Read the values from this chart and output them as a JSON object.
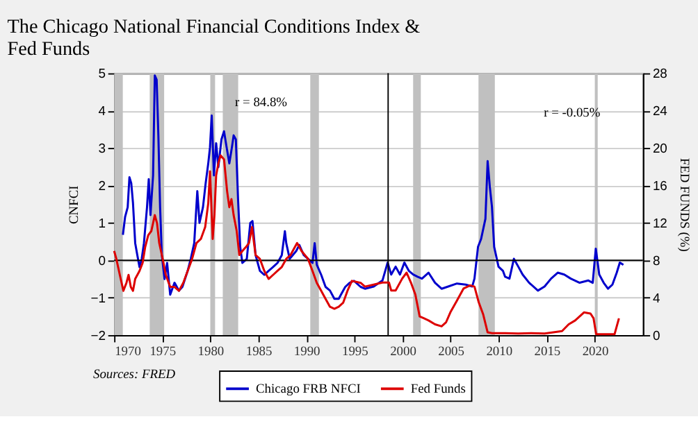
{
  "chart_data": {
    "type": "line",
    "title": "The Chicago National Financial Conditions Index & Fed Funds",
    "ylabel": "CNFCI",
    "y2label": "FED FUNDS (%)",
    "xlim": [
      1970,
      2025
    ],
    "xticks": [
      1970,
      1975,
      1980,
      1985,
      1990,
      1995,
      2000,
      2005,
      2010,
      2015,
      2020
    ],
    "ylim": [
      -2,
      5
    ],
    "yticks": [
      -2,
      -1,
      0,
      1,
      2,
      3,
      4,
      5
    ],
    "y2lim": [
      0,
      28
    ],
    "y2ticks": [
      0,
      4,
      8,
      12,
      16,
      20,
      24,
      28
    ],
    "grid": "y",
    "legend": "bottom",
    "marker": "none",
    "line_style": "solid",
    "annotations": [
      "r = 84.8%",
      "r = -0.05%",
      "Sources: FRED"
    ],
    "ref_lines": [
      {
        "axis": "x",
        "value": 1998.5,
        "color": "#000000"
      },
      {
        "axis": "y",
        "value": 0,
        "color": "#000000"
      }
    ],
    "bands": [
      {
        "axis": "x",
        "from": 1970.0,
        "to": 1970.9,
        "color": "#c0c0c0"
      },
      {
        "axis": "x",
        "from": 1973.7,
        "to": 1975.2,
        "color": "#c0c0c0"
      },
      {
        "axis": "x",
        "from": 1980.0,
        "to": 1980.5,
        "color": "#c0c0c0"
      },
      {
        "axis": "x",
        "from": 1981.3,
        "to": 1982.9,
        "color": "#c0c0c0"
      },
      {
        "axis": "x",
        "from": 1990.4,
        "to": 1991.3,
        "color": "#c0c0c0"
      },
      {
        "axis": "x",
        "from": 2001.1,
        "to": 2001.9,
        "color": "#c0c0c0"
      },
      {
        "axis": "x",
        "from": 2007.9,
        "to": 2009.6,
        "color": "#c0c0c0"
      },
      {
        "axis": "x",
        "from": 2020.0,
        "to": 2020.3,
        "color": "#c0c0c0"
      }
    ],
    "series": [
      {
        "name": "Chicago FRB NFCI",
        "color": "#0000cc",
        "x": [
          1970.91,
          1971.14,
          1971.41,
          1971.59,
          1971.78,
          1971.96,
          1972.19,
          1972.41,
          1972.64,
          1972.87,
          1973.1,
          1973.42,
          1973.6,
          1973.78,
          1974.05,
          1974.23,
          1974.42,
          1974.6,
          1974.78,
          1974.96,
          1975.24,
          1975.51,
          1975.83,
          1976.28,
          1976.74,
          1977.1,
          1977.65,
          1977.97,
          1978.33,
          1978.65,
          1978.88,
          1979.24,
          1979.52,
          1979.79,
          1979.97,
          1980.15,
          1980.38,
          1980.61,
          1980.84,
          1981.16,
          1981.43,
          1981.7,
          1981.98,
          1982.25,
          1982.43,
          1982.66,
          1982.89,
          1983.11,
          1983.34,
          1983.8,
          1984.16,
          1984.39,
          1984.71,
          1985.16,
          1985.62,
          1986.07,
          1986.53,
          1986.99,
          1987.44,
          1987.76,
          1987.9,
          1988.26,
          1988.58,
          1988.94,
          1989.26,
          1989.72,
          1990.17,
          1990.63,
          1990.86,
          1991.08,
          1991.54,
          1991.99,
          1992.45,
          1992.91,
          1993.36,
          1993.59,
          1994.04,
          1994.5,
          1994.95,
          1995.64,
          1996.09,
          1997.0,
          1997.91,
          1998.45,
          1998.82,
          1999.28,
          1999.73,
          2000.19,
          2000.65,
          2001.1,
          2001.56,
          2002.02,
          2002.7,
          2003.38,
          2004.06,
          2004.75,
          2005.66,
          2006.57,
          2007.25,
          2007.48,
          2007.85,
          2008.17,
          2008.62,
          2008.85,
          2009.08,
          2009.3,
          2009.53,
          2009.98,
          2010.44,
          2010.67,
          2011.12,
          2011.58,
          2012.04,
          2012.49,
          2013.17,
          2014.08,
          2014.77,
          2015.45,
          2016.14,
          2016.82,
          2017.5,
          2018.42,
          2019.33,
          2019.78,
          2020.1,
          2020.46,
          2020.92,
          2021.37,
          2021.83,
          2022.28,
          2022.6,
          2022.97
        ],
        "values": [
          0.68,
          1.16,
          1.42,
          2.22,
          2.06,
          1.53,
          0.46,
          0.14,
          -0.18,
          0.04,
          0.46,
          1.42,
          2.17,
          1.21,
          2.27,
          4.94,
          4.83,
          3.34,
          1.42,
          0.14,
          -0.5,
          -0.07,
          -0.92,
          -0.6,
          -0.81,
          -0.71,
          -0.28,
          0.04,
          0.46,
          1.85,
          1.0,
          1.42,
          2.06,
          2.59,
          3.02,
          3.87,
          2.27,
          3.13,
          2.49,
          3.23,
          3.45,
          3.02,
          2.59,
          3.02,
          3.34,
          3.23,
          1.63,
          0.36,
          -0.07,
          0.04,
          1.0,
          1.05,
          0.14,
          -0.28,
          -0.39,
          -0.28,
          -0.18,
          -0.07,
          0.14,
          0.78,
          0.46,
          0.04,
          0.14,
          0.25,
          0.41,
          0.14,
          0.04,
          -0.07,
          0.46,
          -0.12,
          -0.39,
          -0.71,
          -0.81,
          -1.03,
          -1.03,
          -0.92,
          -0.71,
          -0.6,
          -0.55,
          -0.71,
          -0.76,
          -0.7,
          -0.54,
          -0.06,
          -0.38,
          -0.17,
          -0.38,
          -0.06,
          -0.28,
          -0.38,
          -0.44,
          -0.49,
          -0.33,
          -0.6,
          -0.76,
          -0.7,
          -0.62,
          -0.65,
          -0.7,
          -0.49,
          0.36,
          0.57,
          1.11,
          2.65,
          1.96,
          1.43,
          0.36,
          -0.17,
          -0.28,
          -0.44,
          -0.49,
          0.04,
          -0.17,
          -0.38,
          -0.6,
          -0.81,
          -0.7,
          -0.49,
          -0.33,
          -0.38,
          -0.49,
          -0.6,
          -0.54,
          -0.6,
          0.31,
          -0.38,
          -0.6,
          -0.76,
          -0.65,
          -0.33,
          -0.06,
          -0.12
        ]
      },
      {
        "name": "Fed Funds",
        "color": "#dd0000",
        "axis": "y2",
        "x": [
          1970.0,
          1970.23,
          1970.59,
          1970.96,
          1971.28,
          1971.5,
          1971.73,
          1971.96,
          1972.19,
          1972.64,
          1972.96,
          1973.23,
          1973.55,
          1973.87,
          1974.23,
          1974.46,
          1974.69,
          1975.05,
          1975.37,
          1975.83,
          1976.28,
          1976.74,
          1977.19,
          1977.65,
          1978.11,
          1978.56,
          1979.02,
          1979.47,
          1979.79,
          1979.97,
          1980.25,
          1980.43,
          1980.61,
          1980.84,
          1981.07,
          1981.43,
          1981.75,
          1981.98,
          1982.2,
          1982.43,
          1982.75,
          1983.02,
          1983.34,
          1983.71,
          1984.03,
          1984.34,
          1984.71,
          1985.16,
          1985.62,
          1986.07,
          1986.53,
          1986.99,
          1987.44,
          1987.9,
          1988.35,
          1989.03,
          1989.49,
          1990.17,
          1990.63,
          1991.08,
          1991.54,
          1991.99,
          1992.45,
          1992.91,
          1993.36,
          1993.82,
          1994.27,
          1994.73,
          1995.64,
          1996.09,
          1997.0,
          1997.91,
          1998.59,
          1998.82,
          1999.28,
          1999.96,
          2000.42,
          2000.87,
          2001.33,
          2001.78,
          2002.24,
          2002.7,
          2003.38,
          2004.06,
          2004.52,
          2004.97,
          2005.66,
          2006.34,
          2007.03,
          2007.48,
          2007.93,
          2008.39,
          2008.85,
          2009.3,
          2010.67,
          2012.04,
          2013.4,
          2014.77,
          2015.68,
          2016.59,
          2017.28,
          2017.96,
          2018.87,
          2019.55,
          2019.87,
          2020.14,
          2021.14,
          2022.05,
          2022.28,
          2022.51
        ],
        "values": [
          9.0,
          8.15,
          6.44,
          4.74,
          5.59,
          6.44,
          5.16,
          4.74,
          6.01,
          6.87,
          7.72,
          9.42,
          10.7,
          11.13,
          12.83,
          11.98,
          9.85,
          8.15,
          6.44,
          5.16,
          5.16,
          4.74,
          5.59,
          6.87,
          8.15,
          9.85,
          10.28,
          11.56,
          14.11,
          17.52,
          10.28,
          12.83,
          17.09,
          18.37,
          19.22,
          18.8,
          15.39,
          13.68,
          14.54,
          12.83,
          11.13,
          8.57,
          9.0,
          9.42,
          9.85,
          11.56,
          8.57,
          8.15,
          6.87,
          6.01,
          6.44,
          6.87,
          7.29,
          8.15,
          8.57,
          9.85,
          9.0,
          8.15,
          6.87,
          5.59,
          4.74,
          3.88,
          3.03,
          2.82,
          3.03,
          3.46,
          4.74,
          5.8,
          5.59,
          5.19,
          5.4,
          5.62,
          5.62,
          4.77,
          4.77,
          6.04,
          6.68,
          5.62,
          4.34,
          2.0,
          1.79,
          1.57,
          1.15,
          0.94,
          1.36,
          2.43,
          3.7,
          4.98,
          5.32,
          5.19,
          3.49,
          2.21,
          0.3,
          0.21,
          0.21,
          0.17,
          0.21,
          0.17,
          0.3,
          0.43,
          1.15,
          1.57,
          2.43,
          2.3,
          1.79,
          0.09,
          0.09,
          0.09,
          0.94,
          1.79
        ]
      }
    ]
  }
}
